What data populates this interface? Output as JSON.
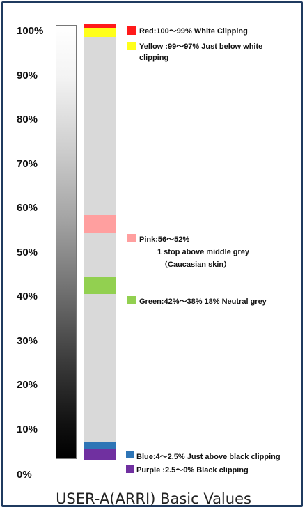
{
  "axis": {
    "labels": [
      "100%",
      "90%",
      "80%",
      "70%",
      "60%",
      "50%",
      "40%",
      "30%",
      "20%",
      "10%",
      "0%"
    ]
  },
  "colors": {
    "strip_background": "#d9d9d9",
    "red": "#ff1a1a",
    "yellow": "#ffff1a",
    "pink": "#ff9f9f",
    "green": "#92d050",
    "blue": "#2e75b6",
    "purple": "#7030a0",
    "frame": "#1f3a5f"
  },
  "legend": {
    "red": {
      "line1": "Red:100〜99% White Clipping"
    },
    "yellow": {
      "line1": "Yellow :99〜97% Just below white",
      "line2": "clipping"
    },
    "pink": {
      "line1": "Pink:56〜52%",
      "line2": "1 stop above middle grey",
      "line3": "（Caucasian skin）"
    },
    "green": {
      "line1": "Green:42%〜38% 18% Neutral grey"
    },
    "blue": {
      "line1": "Blue:4〜2.5%  Just above black clipping"
    },
    "purple": {
      "line1": "Purple :2.5〜0%  Black clipping"
    }
  },
  "bands": [
    {
      "name": "red",
      "from": 99,
      "to": 100
    },
    {
      "name": "yellow",
      "from": 97,
      "to": 99
    },
    {
      "name": "pink",
      "from": 52,
      "to": 56
    },
    {
      "name": "green",
      "from": 38,
      "to": 42
    },
    {
      "name": "blue",
      "from": 2.5,
      "to": 4
    },
    {
      "name": "purple",
      "from": 0,
      "to": 2.5
    }
  ],
  "caption": "USER-A(ARRI) Basic Values"
}
